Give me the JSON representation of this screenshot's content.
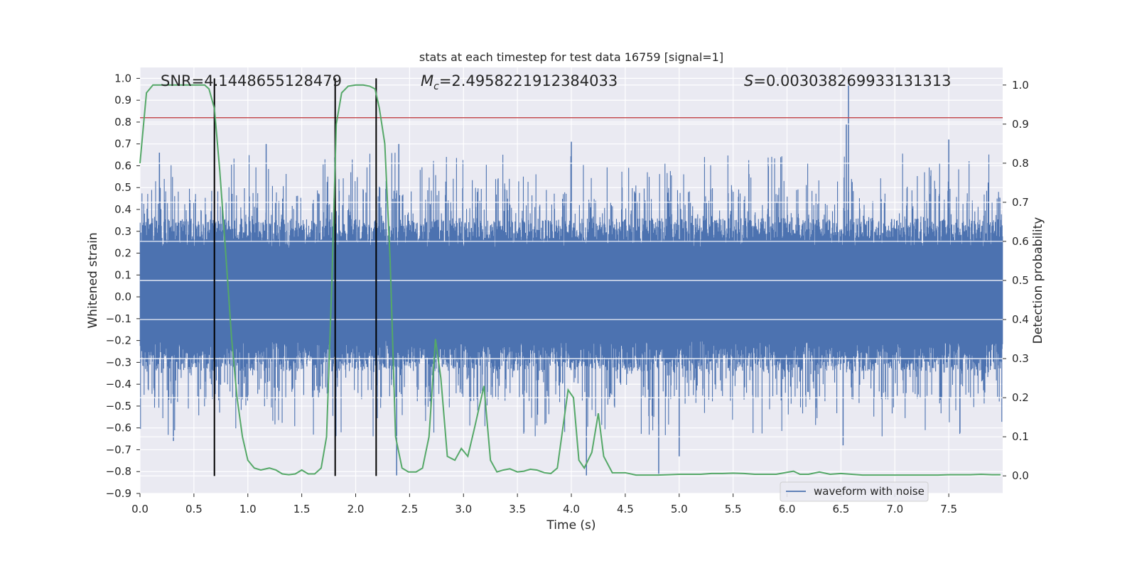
{
  "chart_data": {
    "type": "line",
    "title": "stats at each timestep for test data 16759 [signal=1]",
    "xlabel": "Time (s)",
    "ylabel_left": "Whitened strain",
    "ylabel_right": "Detection probability",
    "xlim": [
      0,
      8.0
    ],
    "ylim_left": [
      -0.9,
      1.05
    ],
    "ylim_right": [
      -0.045,
      1.045
    ],
    "x_ticks": [
      "0.0",
      "0.5",
      "1.0",
      "1.5",
      "2.0",
      "2.5",
      "3.0",
      "3.5",
      "4.0",
      "4.5",
      "5.0",
      "5.5",
      "6.0",
      "6.5",
      "7.0",
      "7.5"
    ],
    "y_ticks_left": [
      "1.0",
      "0.9",
      "0.8",
      "0.7",
      "0.6",
      "0.5",
      "0.4",
      "0.3",
      "0.2",
      "0.1",
      "0.0",
      "−0.1",
      "−0.2",
      "−0.3",
      "−0.4",
      "−0.5",
      "−0.6",
      "−0.7",
      "−0.8",
      "−0.9"
    ],
    "y_ticks_right": [
      "1.0",
      "0.9",
      "0.8",
      "0.7",
      "0.6",
      "0.5",
      "0.4",
      "0.3",
      "0.2",
      "0.1",
      "0.0"
    ],
    "grid": true,
    "legend_position": "lower-right",
    "annotations": {
      "snr": "SNR=4.1448655128479",
      "mc_symbol": "M",
      "mc_sub": "c",
      "mc_value": "=2.4958221912384033",
      "s_symbol": "S",
      "s_value": "=0.003038269933131313"
    },
    "threshold": {
      "value": 0.82,
      "axis": "left",
      "color": "#c44e52"
    },
    "vertical_markers": [
      0.69,
      1.81,
      2.19
    ],
    "marker_range": [
      -0.82,
      1.0
    ],
    "series": [
      {
        "name": "waveform with noise",
        "axis": "left",
        "color": "#4c72b0",
        "kind": "noise",
        "amplitude_envelope_typical": [
          -0.45,
          0.45
        ],
        "peaks": [
          {
            "x": 6.57,
            "y": 1.0
          },
          {
            "x": 6.55,
            "y": 0.79
          },
          {
            "x": 4.0,
            "y": 0.71
          },
          {
            "x": 7.5,
            "y": 0.72
          },
          {
            "x": 1.17,
            "y": 0.7
          },
          {
            "x": 2.4,
            "y": 0.7
          },
          {
            "x": 0.18,
            "y": 0.66
          },
          {
            "x": 2.38,
            "y": -0.82
          },
          {
            "x": 4.14,
            "y": -0.82
          },
          {
            "x": 4.81,
            "y": -0.81
          },
          {
            "x": 5.0,
            "y": -0.73
          },
          {
            "x": 6.52,
            "y": -0.68
          },
          {
            "x": 0.31,
            "y": -0.66
          }
        ]
      },
      {
        "axis": "right",
        "color": "#55a868",
        "kind": "line",
        "x": [
          0.0,
          0.06,
          0.12,
          0.2,
          0.3,
          0.4,
          0.5,
          0.6,
          0.64,
          0.69,
          0.74,
          0.8,
          0.85,
          0.9,
          0.95,
          1.0,
          1.06,
          1.12,
          1.2,
          1.26,
          1.32,
          1.38,
          1.44,
          1.5,
          1.56,
          1.62,
          1.68,
          1.73,
          1.78,
          1.82,
          1.87,
          1.93,
          2.0,
          2.07,
          2.13,
          2.18,
          2.22,
          2.27,
          2.32,
          2.37,
          2.43,
          2.49,
          2.56,
          2.62,
          2.68,
          2.74,
          2.79,
          2.85,
          2.92,
          2.98,
          3.04,
          3.1,
          3.19,
          3.25,
          3.31,
          3.37,
          3.43,
          3.5,
          3.56,
          3.62,
          3.68,
          3.75,
          3.81,
          3.87,
          3.93,
          3.97,
          4.02,
          4.07,
          4.12,
          4.19,
          4.25,
          4.3,
          4.38,
          4.5,
          4.6,
          4.7,
          4.8,
          4.9,
          5.0,
          5.1,
          5.2,
          5.3,
          5.4,
          5.5,
          5.6,
          5.7,
          5.8,
          5.9,
          6.0,
          6.06,
          6.12,
          6.2,
          6.3,
          6.4,
          6.5,
          6.6,
          6.7,
          6.8,
          6.9,
          7.0,
          7.1,
          7.2,
          7.3,
          7.4,
          7.5,
          7.6,
          7.7,
          7.8,
          7.9,
          7.98
        ],
        "values": [
          0.8,
          0.98,
          1.0,
          1.0,
          1.0,
          1.0,
          1.0,
          1.0,
          0.99,
          0.94,
          0.78,
          0.55,
          0.35,
          0.2,
          0.1,
          0.04,
          0.02,
          0.015,
          0.02,
          0.015,
          0.005,
          0.003,
          0.005,
          0.015,
          0.005,
          0.005,
          0.02,
          0.1,
          0.5,
          0.9,
          0.98,
          0.997,
          1.0,
          1.0,
          0.997,
          0.99,
          0.94,
          0.85,
          0.55,
          0.1,
          0.02,
          0.01,
          0.01,
          0.02,
          0.1,
          0.35,
          0.25,
          0.05,
          0.04,
          0.07,
          0.05,
          0.12,
          0.23,
          0.04,
          0.01,
          0.015,
          0.018,
          0.01,
          0.012,
          0.017,
          0.015,
          0.008,
          0.006,
          0.02,
          0.14,
          0.22,
          0.2,
          0.04,
          0.02,
          0.06,
          0.16,
          0.05,
          0.008,
          0.008,
          0.002,
          0.002,
          0.002,
          0.003,
          0.004,
          0.004,
          0.004,
          0.006,
          0.006,
          0.007,
          0.006,
          0.004,
          0.004,
          0.004,
          0.009,
          0.012,
          0.004,
          0.004,
          0.01,
          0.004,
          0.006,
          0.004,
          0.002,
          0.002,
          0.002,
          0.002,
          0.002,
          0.002,
          0.002,
          0.002,
          0.003,
          0.003,
          0.003,
          0.004,
          0.003,
          0.003
        ]
      }
    ]
  }
}
